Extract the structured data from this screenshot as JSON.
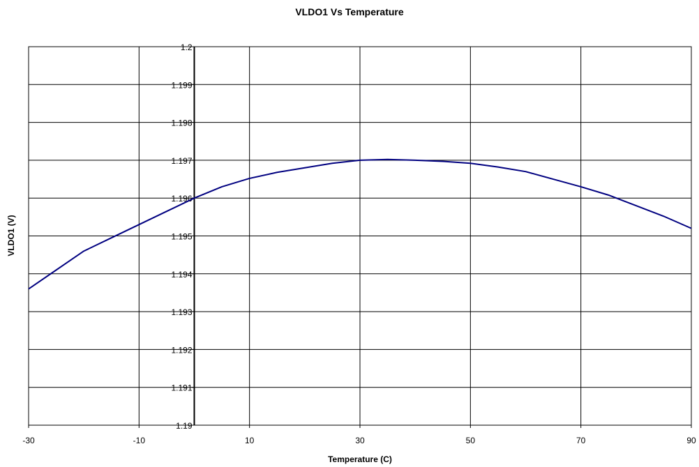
{
  "chart_data": {
    "type": "line",
    "title": "VLDO1 Vs Temperature",
    "xlabel": "Temperature (C)",
    "ylabel": "VLDO1 (V)",
    "xlim": [
      -30,
      90
    ],
    "ylim": [
      1.19,
      1.2
    ],
    "grid": true,
    "legend": "none",
    "x_ticks": [
      -30,
      -10,
      10,
      30,
      50,
      70,
      90
    ],
    "x_tick_labels": [
      "-30",
      "-10",
      "10",
      "30",
      "50",
      "70",
      "90"
    ],
    "y_ticks": [
      1.19,
      1.191,
      1.192,
      1.193,
      1.194,
      1.195,
      1.196,
      1.197,
      1.198,
      1.199,
      1.2
    ],
    "y_tick_labels": [
      "1.19",
      "1.191",
      "1.192",
      "1.193",
      "1.194",
      "1.195",
      "1.196",
      "1.197",
      "1.198",
      "1.199",
      "1.2"
    ],
    "series": [
      {
        "color": "#000080",
        "x": [
          -30,
          -25,
          -20,
          -15,
          -10,
          -5,
          0,
          5,
          10,
          15,
          20,
          25,
          30,
          35,
          40,
          45,
          50,
          55,
          60,
          65,
          70,
          75,
          80,
          85,
          90
        ],
        "y": [
          1.1936,
          1.1941,
          1.1946,
          1.19495,
          1.1953,
          1.19565,
          1.196,
          1.1963,
          1.19652,
          1.19668,
          1.1968,
          1.19692,
          1.197,
          1.19702,
          1.197,
          1.19697,
          1.19692,
          1.19682,
          1.1967,
          1.1965,
          1.1963,
          1.19608,
          1.1958,
          1.19552,
          1.1952
        ]
      }
    ]
  }
}
